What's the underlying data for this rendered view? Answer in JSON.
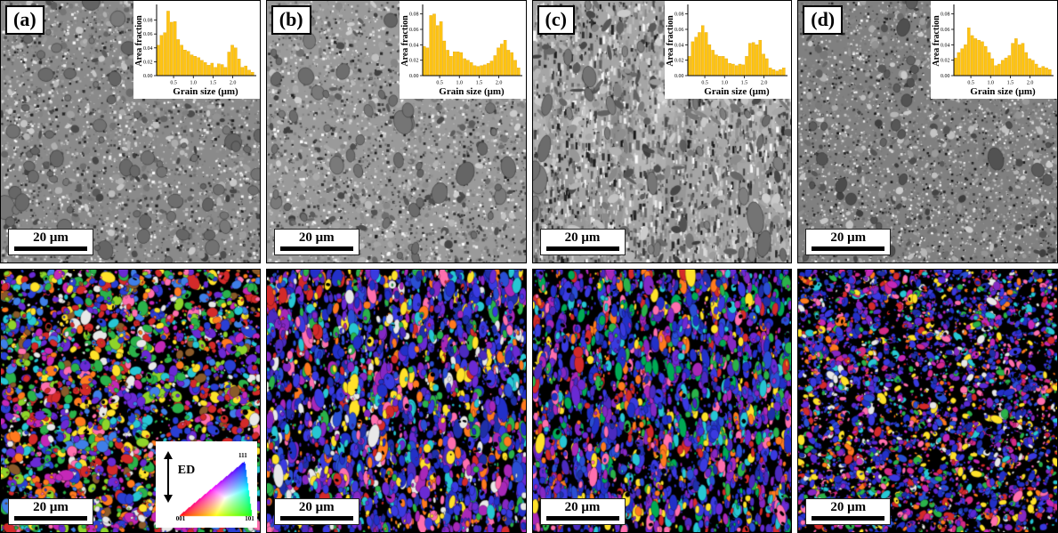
{
  "figure": {
    "panels": [
      {
        "id": "a",
        "label": "(a)",
        "scale_bar_text": "20 μm",
        "sem_style": {
          "base": "#8a8a8a",
          "grain": "#6e6e6e",
          "mode": "round",
          "grains": 80,
          "grainR": 11,
          "ely": 1.0
        },
        "ipf_style": {
          "count": 3000,
          "grain": 6.5,
          "elong": 0.5,
          "rot": 3.14,
          "black": 0.05,
          "palette": [
            "#2a3fd4",
            "#2bb24a",
            "#d42a2a",
            "#c428b8",
            "#ff7a1e",
            "#27c6d4",
            "#6a2ad4",
            "#ff6fae",
            "#ffe22a",
            "#8fd42a",
            "#e8e8e8",
            "#3f7fe8",
            "#8a5a2a",
            "#2bb24a",
            "#2a3fd4",
            "#6a2ad4",
            "#d42a2a"
          ]
        }
      },
      {
        "id": "b",
        "label": "(b)",
        "scale_bar_text": "20 μm",
        "sem_style": {
          "base": "#9a9a9a",
          "grain": "#707070",
          "mode": "round",
          "grains": 60,
          "grainR": 8,
          "ely": 1.3
        },
        "ipf_style": {
          "count": 3000,
          "grain": 6.0,
          "elong": 1.4,
          "rot": 0.5,
          "black": 0.04,
          "palette": [
            "#2230c8",
            "#3a3ae0",
            "#4b2bbf",
            "#6a2ad4",
            "#8428c4",
            "#a828b8",
            "#2a4fd4",
            "#1f2fa8",
            "#2230c8",
            "#3a3ae0",
            "#2bb24a",
            "#d42a2a",
            "#ff7a1e",
            "#ff6fae",
            "#27c6d4",
            "#ffe22a",
            "#e8e8e8"
          ]
        }
      },
      {
        "id": "c",
        "label": "(c)",
        "scale_bar_text": "20 μm",
        "sem_style": {
          "base": "#a5a5a5",
          "grain": "#787878",
          "mode": "streaks",
          "grains": 48,
          "grainR": 8,
          "ely": 1.8
        },
        "ipf_style": {
          "count": 3000,
          "grain": 5.5,
          "elong": 1.6,
          "rot": 0.4,
          "black": 0.05,
          "palette": [
            "#2230c8",
            "#3a3ae0",
            "#4b2bbf",
            "#6a2ad4",
            "#8428c4",
            "#a828b8",
            "#2a4fd4",
            "#1f2fa8",
            "#2230c8",
            "#3a3ae0",
            "#2bb24a",
            "#d42a2a",
            "#ff7a1e",
            "#ff6fae",
            "#27c6d4",
            "#ffe22a",
            "#00aa55"
          ]
        }
      },
      {
        "id": "d",
        "label": "(d)",
        "scale_bar_text": "20 μm",
        "sem_style": {
          "base": "#808080",
          "grain": "#585858",
          "mode": "fine",
          "grains": 34,
          "grainR": 6,
          "ely": 1.2
        },
        "ipf_style": {
          "count": 3800,
          "grain": 4.0,
          "elong": 0.8,
          "rot": 3.14,
          "black": 0.1,
          "palette": [
            "#2230c8",
            "#3a3ae0",
            "#5a2ad4",
            "#8428c4",
            "#c428b8",
            "#2a4fd4",
            "#1f2fa8",
            "#d42a86",
            "#2230c8",
            "#3a3ae0",
            "#2bb24a",
            "#ff7a1e",
            "#27c6d4",
            "#ffe22a",
            "#d42a2a",
            "#ff6fae",
            "#e8e8e8"
          ]
        }
      }
    ],
    "ipf_legend": {
      "direction_label": "ED",
      "corner_001": "001",
      "corner_101": "101",
      "corner_111": "111",
      "corner_colors": {
        "001": "#ff0000",
        "101": "#00cc00",
        "111": "#0000ff"
      }
    }
  },
  "chart_data": [
    {
      "type": "bar",
      "panel": "a",
      "title": "",
      "xlabel": "Grain size (μm)",
      "ylabel": "Area fraction",
      "xlim": [
        0.07,
        2.55
      ],
      "ylim": [
        0,
        0.1
      ],
      "x_ticks": [
        0.5,
        1.0,
        1.5,
        2.0
      ],
      "x_tick_labels": [
        "0.5",
        "1.0",
        "1.5",
        "2.0"
      ],
      "y_ticks": [
        0.0,
        0.02,
        0.04,
        0.06,
        0.08
      ],
      "y_tick_labels": [
        "0.00",
        "0.02",
        "0.04",
        "0.06",
        "0.08"
      ],
      "bar_color": "#ffc413",
      "legend": "off",
      "grid": "off",
      "values": [
        0.044,
        0.058,
        0.062,
        0.093,
        0.077,
        0.078,
        0.052,
        0.044,
        0.037,
        0.035,
        0.03,
        0.028,
        0.026,
        0.022,
        0.019,
        0.015,
        0.018,
        0.012,
        0.017,
        0.016,
        0.012,
        0.034,
        0.044,
        0.04,
        0.024,
        0.012,
        0.014,
        0.008,
        0.005
      ]
    },
    {
      "type": "bar",
      "panel": "b",
      "title": "",
      "xlabel": "Grain size (μm)",
      "ylabel": "Area fraction",
      "xlim": [
        0.07,
        2.55
      ],
      "ylim": [
        0,
        0.09
      ],
      "x_ticks": [
        0.5,
        1.0,
        1.5,
        2.0
      ],
      "x_tick_labels": [
        "0.5",
        "1.0",
        "1.5",
        "2.0"
      ],
      "y_ticks": [
        0.0,
        0.02,
        0.04,
        0.06,
        0.08
      ],
      "y_tick_labels": [
        "0.00",
        "0.02",
        "0.04",
        "0.06",
        "0.08"
      ],
      "bar_color": "#ffc413",
      "legend": "off",
      "grid": "off",
      "values": [
        0.038,
        0.036,
        0.078,
        0.08,
        0.065,
        0.07,
        0.045,
        0.033,
        0.025,
        0.031,
        0.031,
        0.03,
        0.022,
        0.02,
        0.017,
        0.013,
        0.012,
        0.013,
        0.014,
        0.016,
        0.019,
        0.026,
        0.036,
        0.041,
        0.046,
        0.033,
        0.03,
        0.02,
        0.01
      ]
    },
    {
      "type": "bar",
      "panel": "c",
      "title": "",
      "xlabel": "Grain size (μm)",
      "ylabel": "Area fraction",
      "xlim": [
        0.07,
        2.55
      ],
      "ylim": [
        0,
        0.09
      ],
      "x_ticks": [
        0.5,
        1.0,
        1.5,
        2.0
      ],
      "x_tick_labels": [
        "0.5",
        "1.0",
        "1.5",
        "2.0"
      ],
      "y_ticks": [
        0.0,
        0.02,
        0.04,
        0.06,
        0.08
      ],
      "y_tick_labels": [
        "0.00",
        "0.02",
        "0.04",
        "0.06",
        "0.08"
      ],
      "bar_color": "#ffc413",
      "legend": "off",
      "grid": "off",
      "values": [
        0.025,
        0.044,
        0.05,
        0.056,
        0.065,
        0.056,
        0.04,
        0.033,
        0.027,
        0.025,
        0.025,
        0.022,
        0.016,
        0.015,
        0.013,
        0.015,
        0.014,
        0.025,
        0.042,
        0.043,
        0.04,
        0.046,
        0.028,
        0.022,
        0.01,
        0.008,
        0.006,
        0.008,
        0.01
      ]
    },
    {
      "type": "bar",
      "panel": "d",
      "title": "",
      "xlabel": "Grain size (μm)",
      "ylabel": "Area fraction",
      "xlim": [
        0.07,
        2.55
      ],
      "ylim": [
        0,
        0.09
      ],
      "x_ticks": [
        0.5,
        1.0,
        1.5,
        2.0
      ],
      "x_tick_labels": [
        "0.5",
        "1.0",
        "1.5",
        "2.0"
      ],
      "y_ticks": [
        0.0,
        0.02,
        0.04,
        0.06,
        0.08
      ],
      "y_tick_labels": [
        "0.00",
        "0.02",
        "0.04",
        "0.06",
        "0.08"
      ],
      "bar_color": "#ffc413",
      "legend": "off",
      "grid": "off",
      "values": [
        0.023,
        0.03,
        0.035,
        0.04,
        0.062,
        0.052,
        0.048,
        0.046,
        0.044,
        0.038,
        0.03,
        0.022,
        0.013,
        0.015,
        0.02,
        0.023,
        0.026,
        0.042,
        0.048,
        0.04,
        0.042,
        0.03,
        0.022,
        0.02,
        0.015,
        0.01,
        0.012,
        0.01,
        0.008
      ]
    }
  ]
}
